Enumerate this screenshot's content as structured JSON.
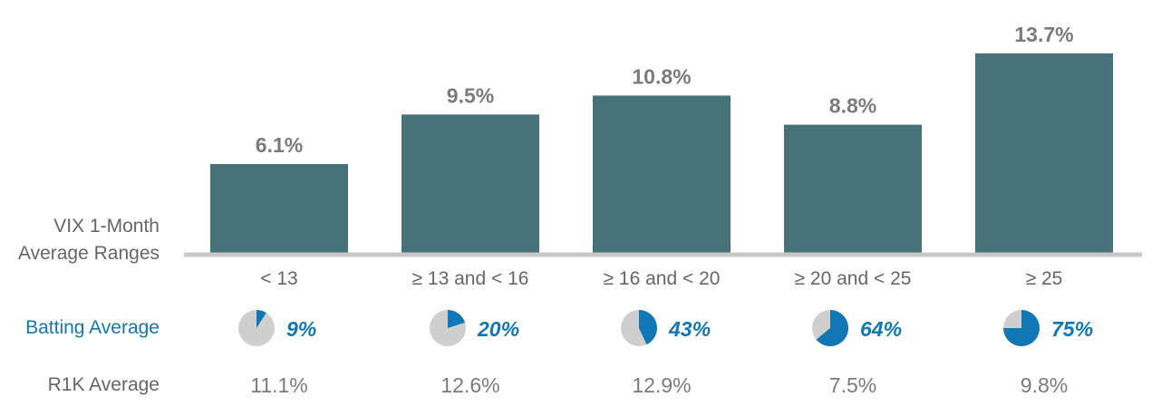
{
  "chart_data": {
    "type": "bar",
    "axis_label_lines": [
      "VIX 1-Month",
      "Average Ranges"
    ],
    "categories": [
      "< 13",
      "≥ 13 and < 16",
      "≥ 16 and < 20",
      "≥ 20 and < 25",
      "≥ 25"
    ],
    "values": [
      6.1,
      9.5,
      10.8,
      8.8,
      13.7
    ],
    "value_labels": [
      "6.1%",
      "9.5%",
      "10.8%",
      "8.8%",
      "13.7%"
    ],
    "ylim": [
      0,
      14.5
    ],
    "grid": false,
    "batting_average": {
      "label": "Batting Average",
      "values": [
        9,
        20,
        43,
        64,
        75
      ],
      "value_labels": [
        "9%",
        "20%",
        "43%",
        "64%",
        "75%"
      ]
    },
    "r1k_average": {
      "label": "R1K Average",
      "value_labels": [
        "11.1%",
        "12.6%",
        "12.9%",
        "7.5%",
        "9.8%"
      ]
    }
  },
  "colors": {
    "bar": "#477279",
    "axis": "#c8c8c8",
    "pie_accent": "#1177b5",
    "pie_base": "#cfcfcf"
  }
}
